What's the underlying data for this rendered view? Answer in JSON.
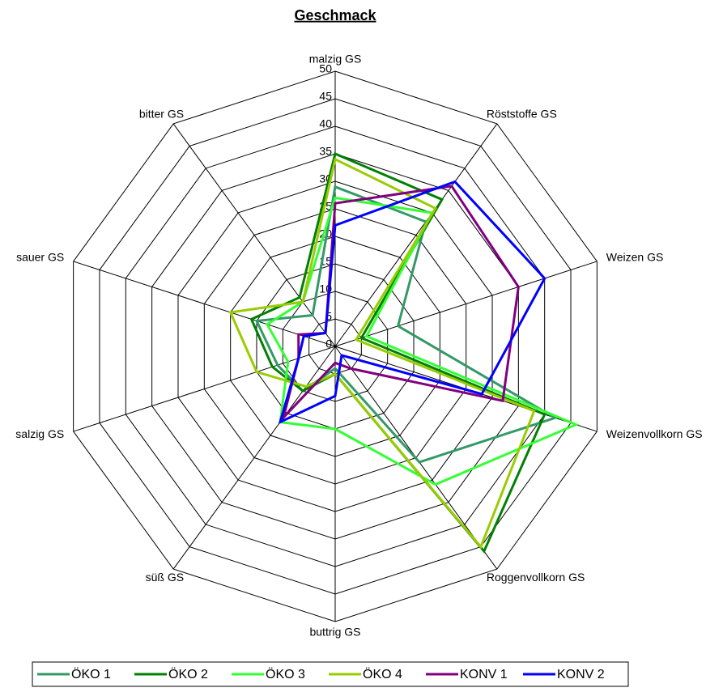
{
  "chart_data": {
    "type": "radar",
    "title": "Geschmack",
    "categories": [
      "malzig GS",
      "Röststoffe GS",
      "Weizen GS",
      "Weizenvollkorn GS",
      "Roggenvollkorn GS",
      "buttrig GS",
      "süß GS",
      "salzig GS",
      "sauer GS",
      "bitter GS"
    ],
    "ylim": [
      0,
      50
    ],
    "yticks": [
      0,
      5,
      10,
      15,
      20,
      25,
      30,
      35,
      40,
      45,
      50
    ],
    "grid": true,
    "legend": "bottom",
    "series": [
      {
        "name": "ÖKO 1",
        "color": "#339966",
        "values": [
          29,
          28,
          12,
          42,
          26,
          4,
          10,
          11,
          15,
          7
        ]
      },
      {
        "name": "ÖKO 2",
        "color": "#008000",
        "values": [
          35,
          33,
          5,
          40,
          46,
          5,
          10,
          12,
          16,
          11
        ]
      },
      {
        "name": "ÖKO 3",
        "color": "#33ff33",
        "values": [
          27,
          30,
          6,
          46,
          31,
          15,
          17,
          9,
          13,
          10
        ]
      },
      {
        "name": "ÖKO 4",
        "color": "#99cc00",
        "values": [
          34,
          31,
          4,
          38,
          45,
          5,
          9,
          15,
          20,
          10
        ]
      },
      {
        "name": "KONV 1",
        "color": "#800080",
        "values": [
          26,
          36,
          35,
          32,
          5,
          3,
          16,
          7,
          7,
          3
        ]
      },
      {
        "name": "KONV 2",
        "color": "#0000ff",
        "values": [
          22,
          37,
          40,
          28,
          2,
          9,
          17,
          7,
          6,
          3
        ]
      }
    ]
  }
}
